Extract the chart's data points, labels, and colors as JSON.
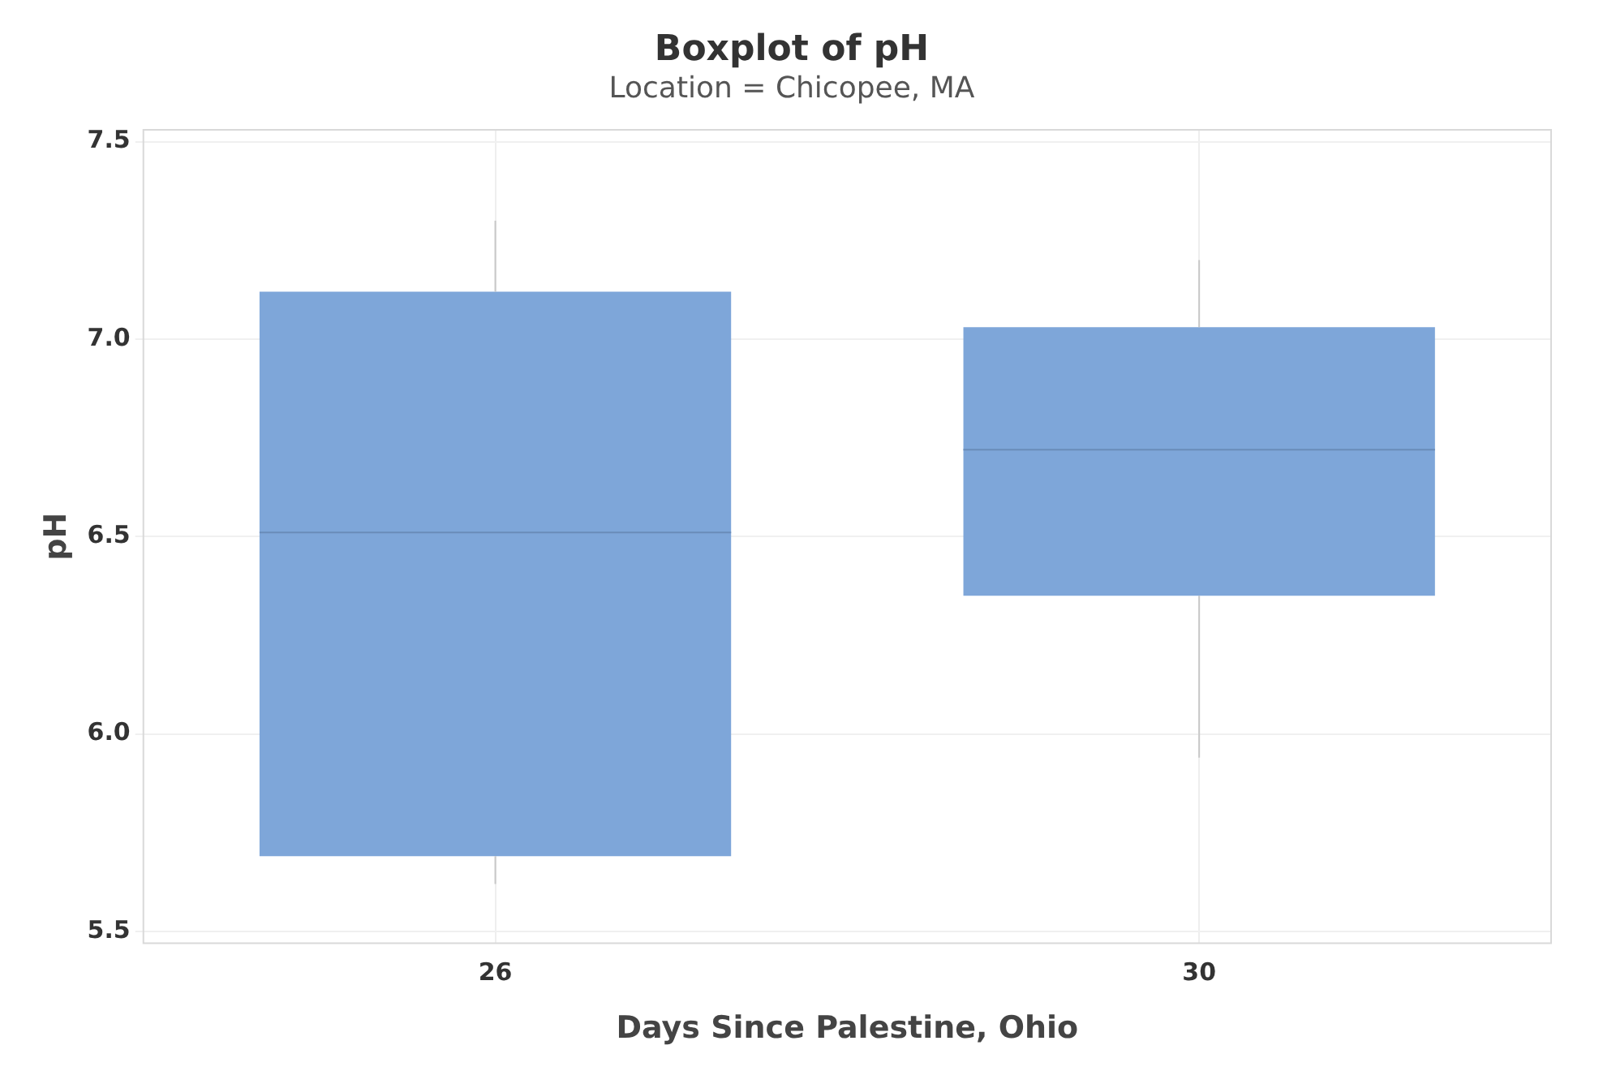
{
  "chart_data": {
    "type": "box",
    "title": "Boxplot of pH",
    "subtitle": "Location = Chicopee, MA",
    "xlabel": "Days Since Palestine, Ohio",
    "ylabel": "pH",
    "categories": [
      "26",
      "30"
    ],
    "boxes": [
      {
        "low": 5.62,
        "q1": 5.69,
        "median": 6.51,
        "q3": 7.12,
        "high": 7.3
      },
      {
        "low": 5.94,
        "q1": 6.35,
        "median": 6.72,
        "q3": 7.03,
        "high": 7.2
      }
    ],
    "color": "#7ea6d9",
    "ylim": [
      5.47,
      7.53
    ],
    "yticks": [
      {
        "value": 5.5,
        "label": "5.5"
      },
      {
        "value": 6,
        "label": "6.0"
      },
      {
        "value": 6.5,
        "label": "6.5"
      },
      {
        "value": 7,
        "label": "7.0"
      },
      {
        "value": 7.5,
        "label": "7.5"
      }
    ],
    "grid": true
  }
}
